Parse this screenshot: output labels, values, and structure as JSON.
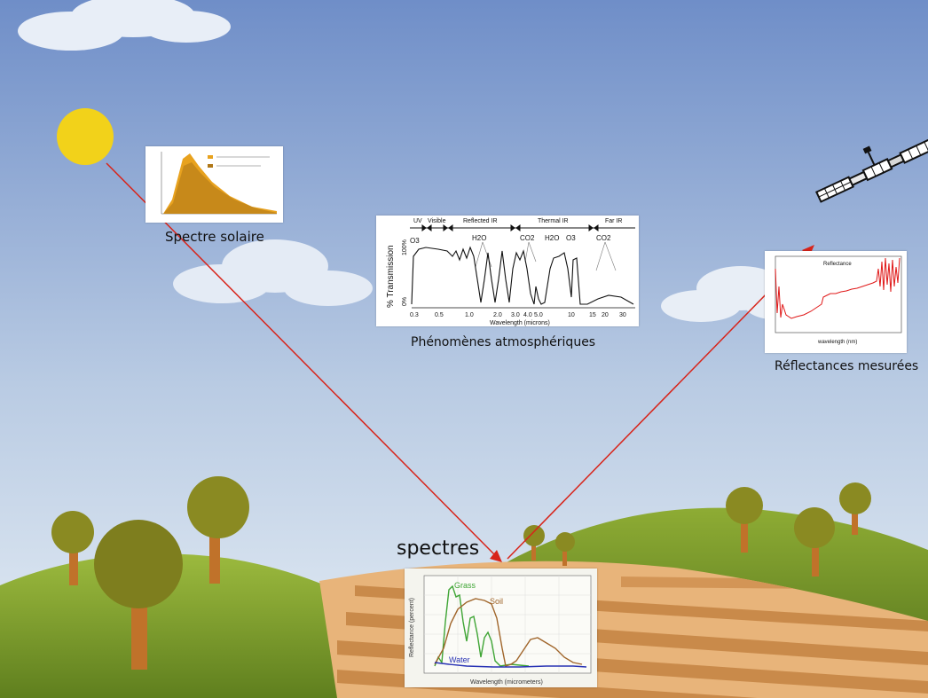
{
  "labels": {
    "solar": "Spectre solaire",
    "atmos": "Phénomènes atmosphériques",
    "reflect": "Réflectances mesurées",
    "spectra": "spectres"
  },
  "atmos_chart": {
    "bands": [
      "UV",
      "Visible",
      "Reflected IR",
      "Thermal IR",
      "Far IR"
    ],
    "ylabel": "% Transmission",
    "ytick_top": "100%",
    "ytick_bottom": "0%",
    "xlabel": "Wavelength (microns)",
    "xticks": [
      "0.3",
      "0.5",
      "1.0",
      "2.0",
      "3.0",
      "4.0",
      "5.0",
      "10",
      "15",
      "20",
      "30"
    ],
    "gases": [
      "O3",
      "H2O",
      "CO2",
      "H2O",
      "O3",
      "CO2"
    ]
  },
  "soil_chart": {
    "ylabel": "Reflectance (percent)",
    "xlabel": "Wavelength (micrometers)",
    "series": [
      "Grass",
      "Soil",
      "Water"
    ],
    "colors": {
      "grass": "#3fa535",
      "soil": "#a0652a",
      "water": "#2832b4"
    }
  },
  "reflect_chart": {
    "title": "Reflectance",
    "xlabel": "wavelength (nm)"
  },
  "colors": {
    "sun": "#f2d21a",
    "ray": "#d8241a",
    "sky_top": "#6f8ec8",
    "sky_bottom": "#dde8f2",
    "hill": "#7ea232",
    "field_stripe": "#c98a4a",
    "tree_crown": "#8a8a22",
    "tree_trunk": "#c0722a"
  }
}
